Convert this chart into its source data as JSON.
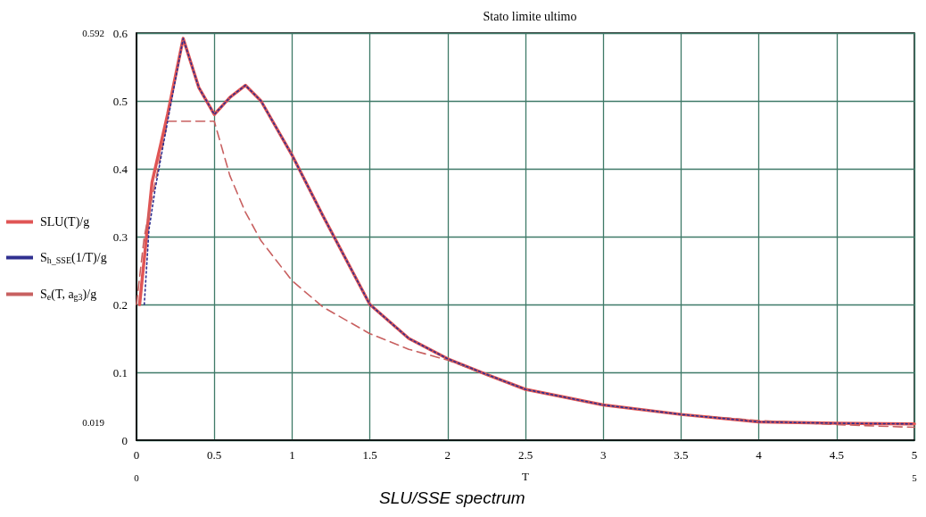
{
  "chart_data": {
    "type": "line",
    "title": "Stato limite ultimo",
    "xlabel": "T",
    "xlim": [
      0,
      5
    ],
    "xticks": [
      0,
      0.5,
      1,
      1.5,
      2,
      2.5,
      3,
      3.5,
      4,
      4.5,
      5
    ],
    "ylim": [
      0,
      0.6
    ],
    "yticks": [
      0,
      0.1,
      0.2,
      0.3,
      0.4,
      0.5,
      0.6
    ],
    "grid": true,
    "legend": "left",
    "marker": "none",
    "series": [
      {
        "name": "SLU(T)/g",
        "color": "#e05555",
        "line_style": "solid",
        "x": [
          0.02,
          0.1,
          0.2,
          0.3,
          0.4,
          0.5,
          0.6,
          0.7,
          0.8,
          1.0,
          1.2,
          1.5,
          1.75,
          2.0,
          2.25,
          2.5,
          3.0,
          3.5,
          4.0,
          4.5,
          5.0
        ],
        "values": [
          0.2,
          0.38,
          0.48,
          0.592,
          0.52,
          0.48,
          0.505,
          0.523,
          0.5,
          0.42,
          0.33,
          0.2,
          0.15,
          0.12,
          0.097,
          0.075,
          0.052,
          0.038,
          0.027,
          0.025,
          0.024
        ]
      },
      {
        "name": "S$_{h_SSE}$(1/T)/g",
        "color": "#303090",
        "line_style": "dotted",
        "x": [
          0.05,
          0.08,
          0.12,
          0.2,
          0.3,
          0.4,
          0.5,
          0.6,
          0.7,
          0.8,
          1.0,
          1.2,
          1.5,
          1.75,
          2.0,
          2.25,
          2.5,
          3.0,
          3.5,
          4.0,
          4.5,
          5.0
        ],
        "values": [
          0.2,
          0.31,
          0.37,
          0.47,
          0.592,
          0.52,
          0.48,
          0.505,
          0.523,
          0.5,
          0.42,
          0.33,
          0.2,
          0.15,
          0.12,
          0.097,
          0.075,
          0.052,
          0.038,
          0.027,
          0.025,
          0.024
        ]
      },
      {
        "name": "S$_{e}$(T, a$_{g3}$)/g",
        "color": "#c86060",
        "line_style": "dashed",
        "x": [
          0.0,
          0.05,
          0.2,
          0.5,
          0.6,
          0.7,
          0.8,
          1.0,
          1.2,
          1.5,
          1.75,
          2.0,
          2.5,
          3.0,
          3.5,
          4.0,
          4.5,
          5.0
        ],
        "values": [
          0.2,
          0.3,
          0.47,
          0.47,
          0.39,
          0.336,
          0.294,
          0.235,
          0.196,
          0.157,
          0.134,
          0.118,
          0.075,
          0.052,
          0.038,
          0.029,
          0.023,
          0.019
        ]
      }
    ],
    "annotations": [
      "0.592",
      "0.019",
      "0",
      "5",
      "SLU/SSE spectrum"
    ]
  }
}
